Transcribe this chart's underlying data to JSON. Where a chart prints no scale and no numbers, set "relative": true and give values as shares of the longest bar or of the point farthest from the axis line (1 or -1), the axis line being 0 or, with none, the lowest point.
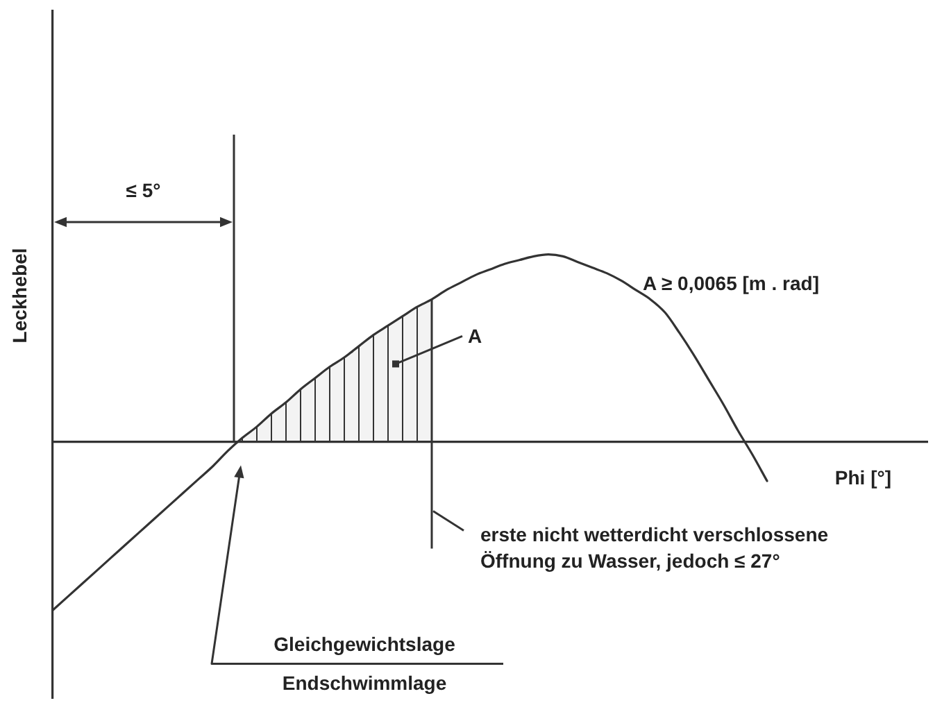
{
  "chart_data": {
    "type": "line",
    "xlabel": "Phi [°]",
    "ylabel": "Leckhebel",
    "relative": true,
    "categories": [
      null,
      null,
      null,
      null,
      null,
      null,
      null,
      null,
      null,
      null,
      null,
      null,
      null,
      null,
      null,
      null,
      null,
      null,
      null,
      null,
      null,
      null,
      null,
      null,
      null,
      null,
      null,
      null,
      null,
      null,
      null,
      null,
      null,
      null,
      null,
      null,
      null,
      null,
      null,
      null,
      null,
      null,
      null,
      null,
      null,
      null,
      null,
      null,
      null,
      null,
      null,
      null,
      null,
      null,
      null,
      null,
      null,
      null,
      null,
      null,
      null
    ],
    "series": [
      {
        "color": "#333333",
        "values": [
          -0.9,
          -0.83,
          -0.76,
          -0.69,
          -0.62,
          -0.55,
          -0.48,
          -0.41,
          -0.34,
          -0.27,
          -0.2,
          -0.13,
          -0.05,
          0.02,
          0.08,
          0.15,
          0.21,
          0.28,
          0.34,
          0.4,
          0.45,
          0.51,
          0.57,
          0.62,
          0.67,
          0.72,
          0.76,
          0.81,
          0.85,
          0.89,
          0.92,
          0.95,
          0.97,
          0.99,
          1,
          0.99,
          0.96,
          0.93,
          0.9,
          0.86,
          0.81,
          0.76,
          0.69,
          0.58,
          0.46,
          0.33,
          0.2,
          0.06,
          -0.07,
          -0.21,
          null,
          null,
          null,
          null,
          null,
          null,
          null,
          null,
          null,
          null,
          null
        ]
      },
      {
        "type": "area",
        "name": "A",
        "color": "#333333",
        "values": [
          null,
          null,
          null,
          null,
          null,
          null,
          null,
          null,
          null,
          null,
          null,
          null,
          null,
          0.02,
          0.08,
          0.15,
          0.21,
          0.28,
          0.34,
          0.4,
          0.45,
          0.51,
          0.57,
          0.62,
          0.67,
          0.72,
          0.76,
          null,
          null,
          null,
          null,
          null,
          null,
          null,
          null,
          null,
          null,
          null,
          null,
          null,
          null,
          null,
          null,
          null,
          null,
          null,
          null,
          null,
          null,
          null,
          null,
          null,
          null,
          null,
          null,
          null,
          null,
          null,
          null,
          null,
          null
        ]
      }
    ],
    "annotations": [
      "≤ 5°",
      "A ≥ 0,0065 [m . rad]",
      "erste nicht wetterdicht verschlossene Öffnung zu Wasser, jedoch ≤ 27°",
      "Gleichgewichtslage",
      "Endschwimmlage"
    ]
  }
}
